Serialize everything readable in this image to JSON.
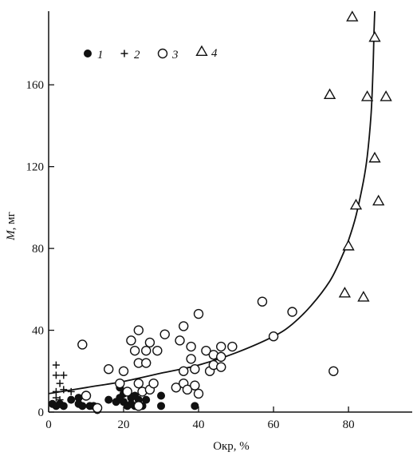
{
  "chart_data": {
    "type": "scatter",
    "xlabel": "Окр, %",
    "ylabel_italic": "M",
    "ylabel_unit": ", мг",
    "xlim": [
      0,
      97
    ],
    "ylim": [
      0,
      196
    ],
    "xticks": [
      0,
      20,
      40,
      60,
      80
    ],
    "yticks": [
      0,
      40,
      80,
      120,
      160
    ],
    "legend": {
      "placement": "top-left",
      "items": [
        {
          "label": "1",
          "marker": "filled-circle"
        },
        {
          "label": "2",
          "marker": "plus"
        },
        {
          "label": "3",
          "marker": "open-circle"
        },
        {
          "label": "4",
          "marker": "triangle"
        }
      ]
    },
    "series": [
      {
        "name": "1",
        "marker": "filled-circle",
        "points": [
          [
            1,
            4
          ],
          [
            2,
            3
          ],
          [
            3,
            4
          ],
          [
            4,
            3
          ],
          [
            6,
            6
          ],
          [
            8,
            4
          ],
          [
            8,
            7
          ],
          [
            9,
            3
          ],
          [
            11,
            3
          ],
          [
            12,
            3
          ],
          [
            13,
            1
          ],
          [
            16,
            6
          ],
          [
            18,
            5
          ],
          [
            19,
            12
          ],
          [
            19,
            7
          ],
          [
            20,
            9
          ],
          [
            20,
            5
          ],
          [
            21,
            3
          ],
          [
            22,
            7
          ],
          [
            22,
            4
          ],
          [
            23,
            3
          ],
          [
            23,
            8
          ],
          [
            24,
            6
          ],
          [
            25,
            3
          ],
          [
            26,
            6
          ],
          [
            30,
            3
          ],
          [
            30,
            8
          ],
          [
            39,
            3
          ]
        ]
      },
      {
        "name": "2",
        "marker": "plus",
        "points": [
          [
            2,
            23
          ],
          [
            2,
            18
          ],
          [
            4,
            18
          ],
          [
            3,
            14
          ],
          [
            2,
            10
          ],
          [
            4,
            11
          ],
          [
            6,
            10
          ],
          [
            2,
            7
          ],
          [
            3,
            6
          ]
        ]
      },
      {
        "name": "3",
        "marker": "open-circle",
        "points": [
          [
            9,
            33
          ],
          [
            10,
            8
          ],
          [
            13,
            2
          ],
          [
            16,
            21
          ],
          [
            19,
            14
          ],
          [
            20,
            20
          ],
          [
            21,
            10
          ],
          [
            22,
            35
          ],
          [
            23,
            30
          ],
          [
            24,
            40
          ],
          [
            24,
            24
          ],
          [
            24,
            14
          ],
          [
            24,
            3
          ],
          [
            25,
            10
          ],
          [
            26,
            24
          ],
          [
            26,
            30
          ],
          [
            27,
            34
          ],
          [
            27,
            11
          ],
          [
            28,
            14
          ],
          [
            29,
            30
          ],
          [
            31,
            38
          ],
          [
            34,
            12
          ],
          [
            35,
            35
          ],
          [
            36,
            42
          ],
          [
            36,
            20
          ],
          [
            36,
            14
          ],
          [
            37,
            11
          ],
          [
            38,
            32
          ],
          [
            38,
            26
          ],
          [
            39,
            21
          ],
          [
            39,
            13
          ],
          [
            40,
            9
          ],
          [
            40,
            48
          ],
          [
            42,
            30
          ],
          [
            43,
            20
          ],
          [
            44,
            23
          ],
          [
            44,
            28
          ],
          [
            46,
            32
          ],
          [
            46,
            22
          ],
          [
            46,
            27
          ],
          [
            49,
            32
          ],
          [
            57,
            54
          ],
          [
            60,
            37
          ],
          [
            65,
            49
          ],
          [
            76,
            20
          ]
        ]
      },
      {
        "name": "4",
        "marker": "triangle",
        "points": [
          [
            75,
            155
          ],
          [
            79,
            58
          ],
          [
            80,
            81
          ],
          [
            81,
            193
          ],
          [
            82,
            101
          ],
          [
            84,
            56
          ],
          [
            85,
            154
          ],
          [
            87,
            183
          ],
          [
            87,
            124
          ],
          [
            88,
            103
          ],
          [
            90,
            154
          ]
        ]
      }
    ],
    "fit_curve": {
      "points": [
        [
          0,
          9
        ],
        [
          10,
          12
        ],
        [
          20,
          15
        ],
        [
          30,
          19
        ],
        [
          40,
          23
        ],
        [
          50,
          29
        ],
        [
          60,
          37
        ],
        [
          65,
          43
        ],
        [
          70,
          52
        ],
        [
          75,
          64
        ],
        [
          78,
          75
        ],
        [
          80,
          84
        ],
        [
          82,
          96
        ],
        [
          84,
          113
        ],
        [
          85,
          125
        ],
        [
          86,
          145
        ],
        [
          86.5,
          165
        ],
        [
          86.8,
          185
        ],
        [
          87,
          197
        ]
      ]
    }
  }
}
